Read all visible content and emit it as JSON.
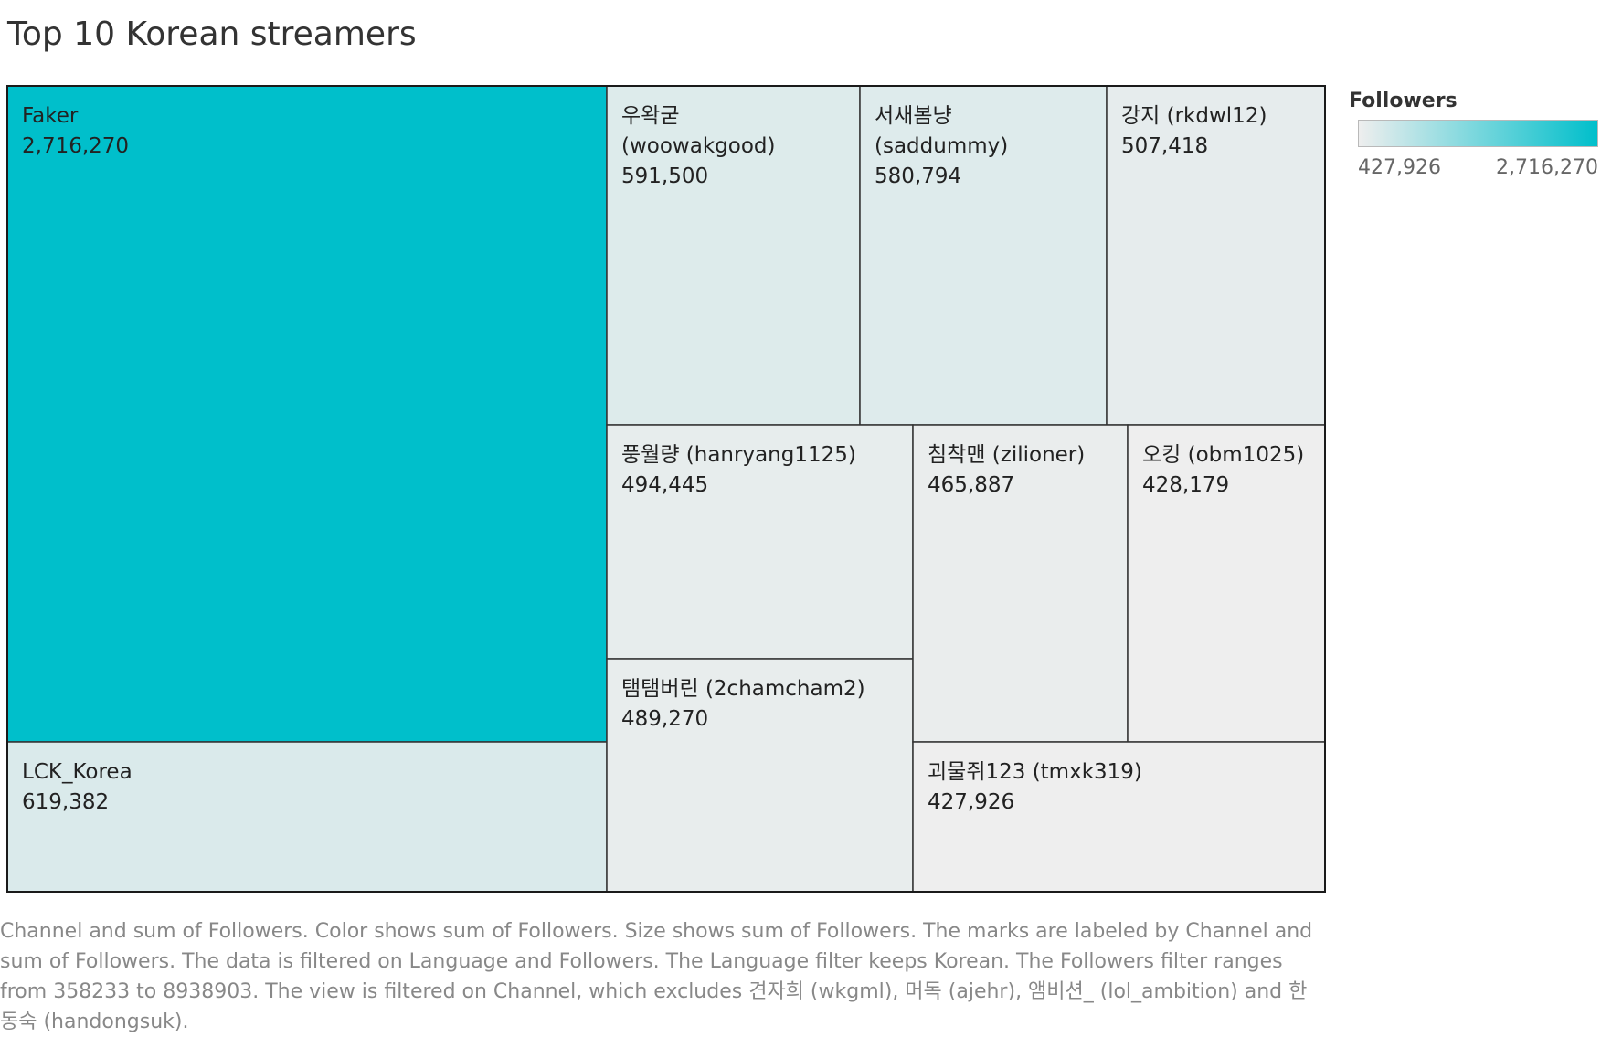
{
  "page": {
    "title": "Top 10 Korean streamers",
    "caption": "Channel and sum of Followers.  Color shows sum of Followers.  Size shows sum of Followers.  The marks are labeled by Channel and sum of Followers. The data is filtered on Language and Followers. The Language filter keeps Korean. The Followers filter ranges from 358233 to 8938903. The view is filtered on Channel, which excludes 견자희 (wkgml), 머독 (ajehr), 앰비션_ (lol_ambition) and 한동숙 (handongsuk)."
  },
  "legend": {
    "title": "Followers",
    "min_label": "427,926",
    "max_label": "2,716,270"
  },
  "colors": {
    "min": "#eeeeee",
    "max": "#00bfcb",
    "tile_border": "#333333",
    "frame_border": "#1a1a1a"
  },
  "chart_data": {
    "type": "treemap",
    "title": "Top 10 Korean streamers",
    "size_measure": "Followers",
    "color_measure": "Followers",
    "color_range": [
      427926,
      2716270
    ],
    "items": [
      {
        "channel": "Faker",
        "followers": 2716270,
        "label_lines": [
          "Faker",
          "2,716,270"
        ]
      },
      {
        "channel": "LCK_Korea",
        "followers": 619382,
        "label_lines": [
          "LCK_Korea",
          "619,382"
        ]
      },
      {
        "channel": "우왁굳 (woowakgood)",
        "followers": 591500,
        "label_lines": [
          "우왁굳",
          "(woowakgood)",
          "591,500"
        ]
      },
      {
        "channel": "서새봄냥 (saddummy)",
        "followers": 580794,
        "label_lines": [
          "서새봄냥",
          "(saddummy)",
          "580,794"
        ]
      },
      {
        "channel": "강지 (rkdwl12)",
        "followers": 507418,
        "label_lines": [
          "강지 (rkdwl12)",
          "507,418"
        ]
      },
      {
        "channel": "풍월량 (hanryang1125)",
        "followers": 494445,
        "label_lines": [
          "풍월량 (hanryang1125)",
          "494,445"
        ]
      },
      {
        "channel": "탬탬버린 (2chamcham2)",
        "followers": 489270,
        "label_lines": [
          "탬탬버린 (2chamcham2)",
          "489,270"
        ]
      },
      {
        "channel": "침착맨 (zilioner)",
        "followers": 465887,
        "label_lines": [
          "침착맨 (zilioner)",
          "465,887"
        ]
      },
      {
        "channel": "오킹 (obm1025)",
        "followers": 428179,
        "label_lines": [
          "오킹 (obm1025)",
          "428,179"
        ]
      },
      {
        "channel": "괴물쥐123 (tmxk319)",
        "followers": 427926,
        "label_lines": [
          "괴물쥐123 (tmxk319)",
          "427,926"
        ]
      }
    ]
  }
}
